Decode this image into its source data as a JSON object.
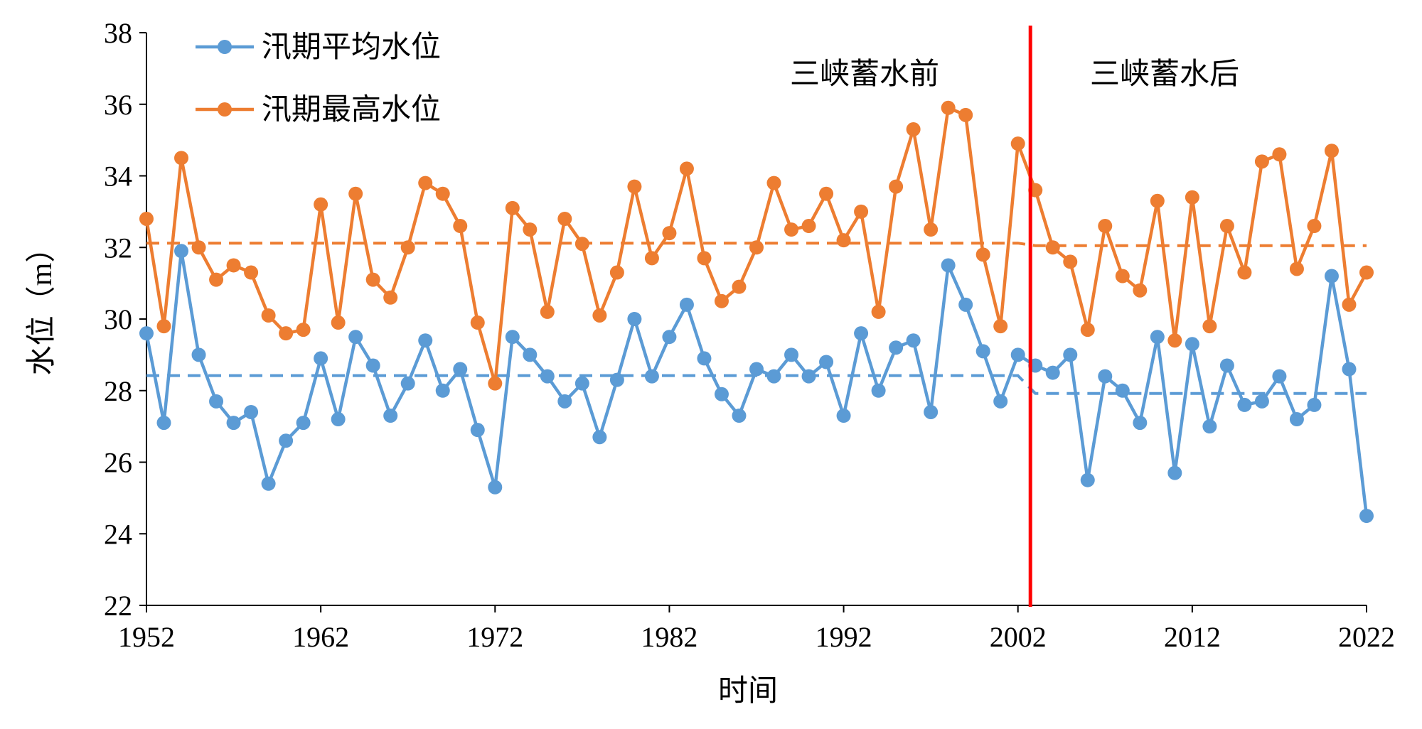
{
  "chart_data": {
    "type": "line",
    "title": "",
    "xlabel": "时间",
    "ylabel": "水位（m）",
    "xlim": [
      1952,
      2022
    ],
    "ylim": [
      22,
      38
    ],
    "x_ticks": [
      1952,
      1962,
      1972,
      1982,
      1992,
      2002,
      2012,
      2022
    ],
    "y_ticks": [
      22,
      24,
      26,
      28,
      30,
      32,
      34,
      36,
      38
    ],
    "legend_position": "top-left",
    "x": [
      1952,
      1953,
      1954,
      1955,
      1956,
      1957,
      1958,
      1959,
      1960,
      1961,
      1962,
      1963,
      1964,
      1965,
      1966,
      1967,
      1968,
      1969,
      1970,
      1971,
      1972,
      1973,
      1974,
      1975,
      1976,
      1977,
      1978,
      1979,
      1980,
      1981,
      1982,
      1983,
      1984,
      1985,
      1986,
      1987,
      1988,
      1989,
      1990,
      1991,
      1992,
      1993,
      1994,
      1995,
      1996,
      1997,
      1998,
      1999,
      2000,
      2001,
      2002,
      2003,
      2004,
      2005,
      2006,
      2007,
      2008,
      2009,
      2010,
      2011,
      2012,
      2013,
      2014,
      2015,
      2016,
      2017,
      2018,
      2019,
      2020,
      2021,
      2022
    ],
    "series": [
      {
        "name": "汛期平均水位",
        "color": "#5B9BD5",
        "values": [
          29.6,
          27.1,
          31.9,
          29.0,
          27.7,
          27.1,
          27.4,
          25.4,
          26.6,
          27.1,
          28.9,
          27.2,
          29.5,
          28.7,
          27.3,
          28.2,
          29.4,
          28.0,
          28.6,
          26.9,
          25.3,
          29.5,
          29.0,
          28.4,
          27.7,
          28.2,
          26.7,
          28.3,
          30.0,
          28.4,
          29.5,
          30.4,
          28.9,
          27.9,
          27.3,
          28.6,
          28.4,
          29.0,
          28.4,
          28.8,
          27.3,
          29.6,
          28.0,
          29.2,
          29.4,
          27.4,
          31.5,
          30.4,
          29.1,
          27.7,
          29.0,
          28.7,
          28.5,
          29.0,
          25.5,
          28.4,
          28.0,
          27.1,
          29.5,
          25.7,
          29.3,
          27.0,
          28.7,
          27.6,
          27.7,
          28.4,
          27.2,
          27.6,
          31.2,
          28.6,
          24.5
        ]
      },
      {
        "name": "汛期最高水位",
        "color": "#ED7D31",
        "values": [
          32.8,
          29.8,
          34.5,
          32.0,
          31.1,
          31.5,
          31.3,
          30.1,
          29.6,
          29.7,
          33.2,
          29.9,
          33.5,
          31.1,
          30.6,
          32.0,
          33.8,
          33.5,
          32.6,
          29.9,
          28.2,
          33.1,
          32.5,
          30.2,
          32.8,
          32.1,
          30.1,
          31.3,
          33.7,
          31.7,
          32.4,
          34.2,
          31.7,
          30.5,
          30.9,
          32.0,
          33.8,
          32.5,
          32.6,
          33.5,
          32.2,
          33.0,
          30.2,
          33.7,
          35.3,
          32.5,
          35.9,
          35.7,
          31.8,
          29.8,
          34.9,
          33.6,
          32.0,
          31.6,
          29.7,
          32.6,
          31.2,
          30.8,
          33.3,
          29.4,
          33.4,
          29.8,
          32.6,
          31.3,
          34.4,
          34.6,
          31.4,
          32.6,
          34.7,
          30.4,
          31.3
        ]
      }
    ],
    "reference_lines": [
      {
        "series": "汛期平均水位",
        "style": "dashed",
        "period_before": {
          "from": 1952,
          "to": 2002,
          "value": 28.42
        },
        "period_after": {
          "from": 2003,
          "to": 2022,
          "value": 27.92
        }
      },
      {
        "series": "汛期最高水位",
        "style": "dashed",
        "period_before": {
          "from": 1952,
          "to": 2002,
          "value": 32.12
        },
        "period_after": {
          "from": 2003,
          "to": 2022,
          "value": 32.05
        }
      }
    ],
    "divider": {
      "x": 2003,
      "color": "#FF0000"
    },
    "annotations": {
      "before": "三峡蓄水前",
      "after": "三峡蓄水后"
    }
  }
}
